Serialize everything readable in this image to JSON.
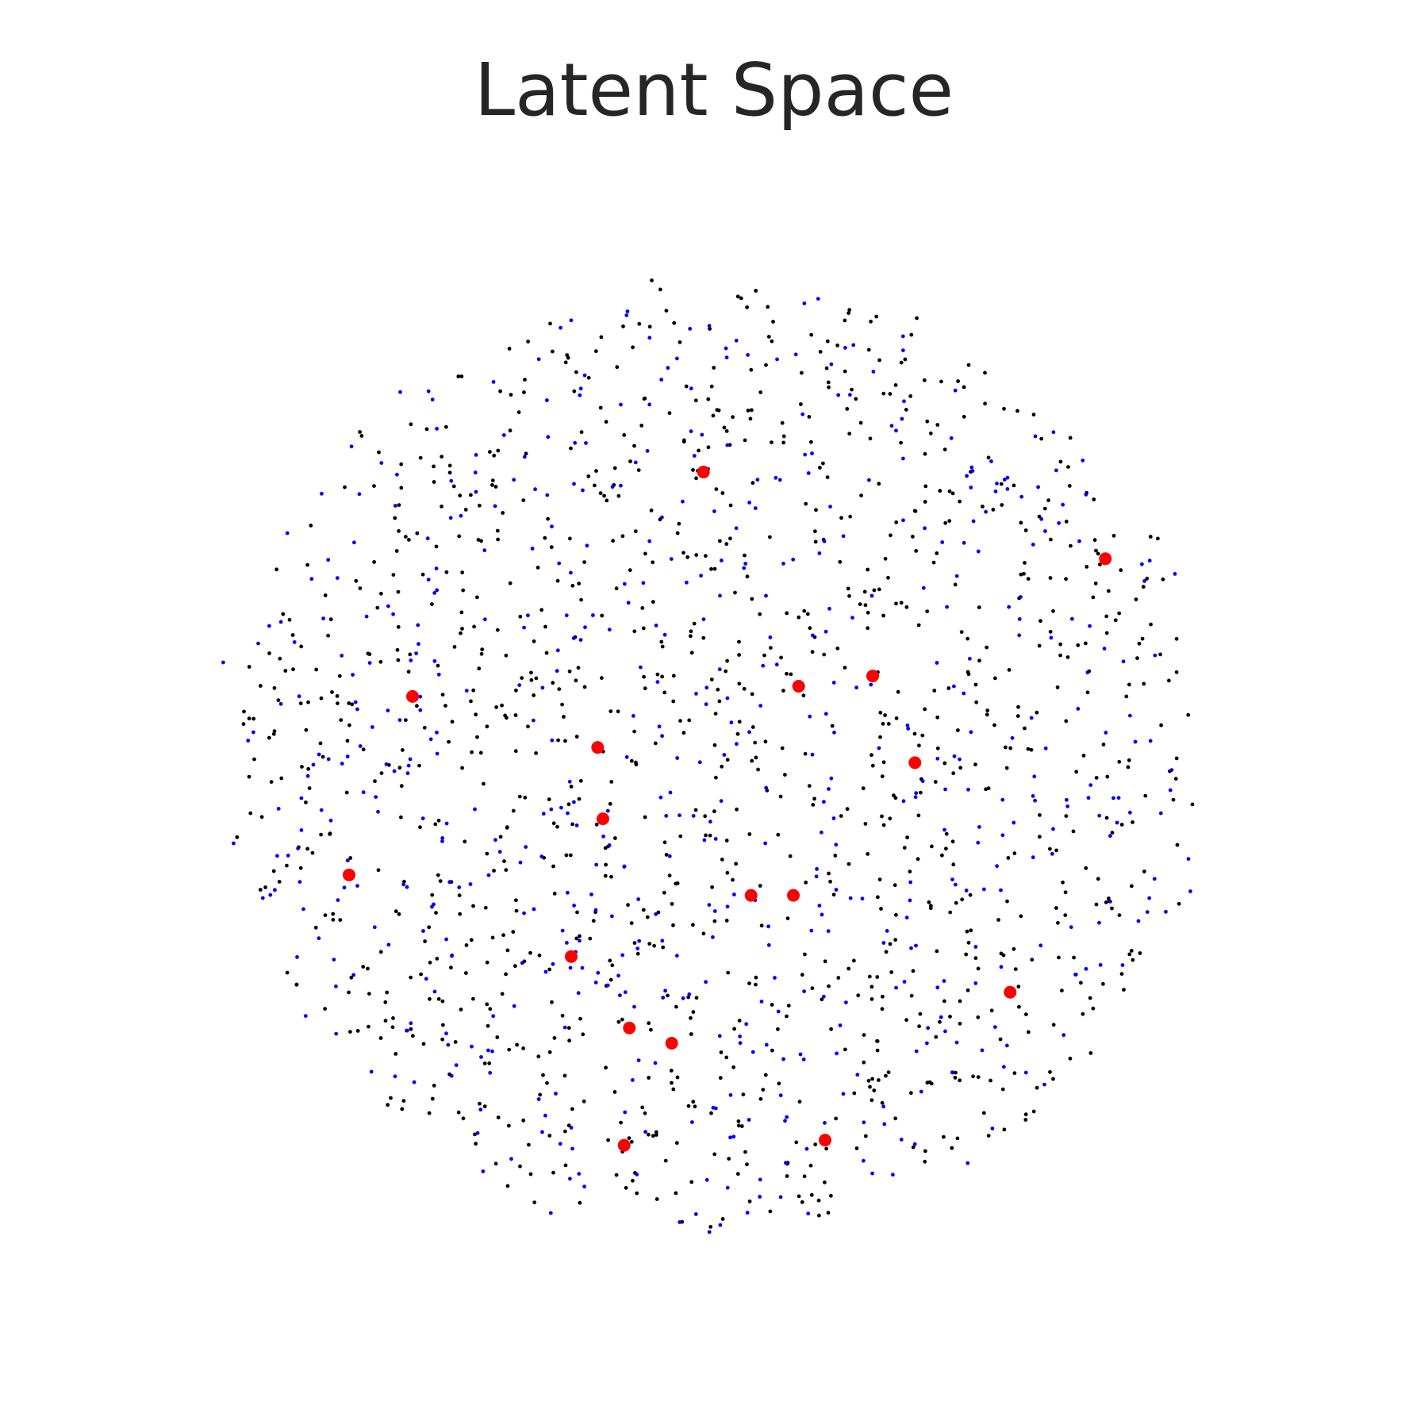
{
  "chart_data": {
    "type": "scatter",
    "title": "Latent Space",
    "xlabel": "",
    "ylabel": "",
    "axes_visible": false,
    "grid": false,
    "legend": "none",
    "xlim": [
      -1.05,
      1.05
    ],
    "ylim": [
      -1.05,
      1.05
    ],
    "colors": {
      "black_points": "#000000",
      "blue_points": "#0000ff",
      "red_points": "#ff0000"
    },
    "generated_series": [
      {
        "color_key": "black_points",
        "count": 1150,
        "seed": 7,
        "radius": 0.92
      },
      {
        "color_key": "blue_points",
        "count": 600,
        "seed": 21,
        "radius": 0.92
      }
    ],
    "series": [
      {
        "color_key": "red_points",
        "points": [
          [
            -0.02,
            0.56
          ],
          [
            0.74,
            0.39
          ],
          [
            -0.57,
            0.12
          ],
          [
            0.16,
            0.14
          ],
          [
            0.3,
            0.16
          ],
          [
            -0.22,
            0.02
          ],
          [
            0.38,
            -0.01
          ],
          [
            -0.21,
            -0.12
          ],
          [
            -0.69,
            -0.23
          ],
          [
            0.07,
            -0.27
          ],
          [
            0.15,
            -0.27
          ],
          [
            -0.27,
            -0.39
          ],
          [
            0.56,
            -0.46
          ],
          [
            -0.16,
            -0.53
          ],
          [
            -0.08,
            -0.56
          ],
          [
            -0.17,
            -0.76
          ],
          [
            0.21,
            -0.75
          ]
        ]
      }
    ]
  }
}
